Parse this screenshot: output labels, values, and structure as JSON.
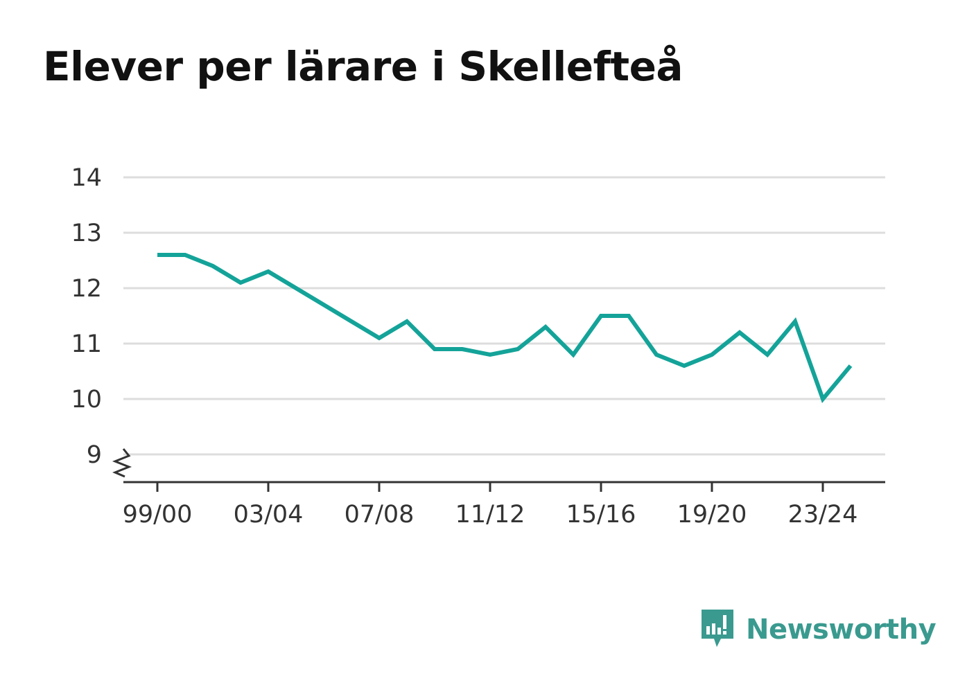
{
  "title": "Elever per lärare i Skellefteå",
  "brand": {
    "name": "Newsworthy",
    "icon": "newsworthy-logo-icon",
    "color": "#3a9a8f"
  },
  "colors": {
    "line": "#14a399",
    "grid": "#dddddd",
    "axis": "#333333"
  },
  "chart_data": {
    "type": "line",
    "title": "Elever per lärare i Skellefteå",
    "xlabel": "",
    "ylabel": "",
    "ylim": [
      8.5,
      14
    ],
    "yticks": [
      9,
      10,
      11,
      12,
      13,
      14
    ],
    "axis_break": true,
    "grid": true,
    "categories": [
      "99/00",
      "00/01",
      "01/02",
      "02/03",
      "03/04",
      "04/05",
      "05/06",
      "06/07",
      "07/08",
      "08/09",
      "09/10",
      "10/11",
      "11/12",
      "12/13",
      "13/14",
      "14/15",
      "15/16",
      "16/17",
      "17/18",
      "18/19",
      "19/20",
      "20/21",
      "21/22",
      "22/23",
      "23/24",
      "24/25"
    ],
    "xtick_labels": [
      "99/00",
      "03/04",
      "07/08",
      "11/12",
      "15/16",
      "19/20",
      "23/24"
    ],
    "series": [
      {
        "values": [
          12.6,
          12.6,
          12.4,
          12.1,
          12.3,
          12.0,
          11.7,
          11.4,
          11.1,
          11.4,
          10.9,
          10.9,
          10.8,
          10.9,
          11.3,
          10.8,
          11.5,
          11.5,
          10.8,
          10.6,
          10.8,
          11.2,
          10.8,
          11.4,
          10.0,
          10.6
        ]
      }
    ]
  }
}
